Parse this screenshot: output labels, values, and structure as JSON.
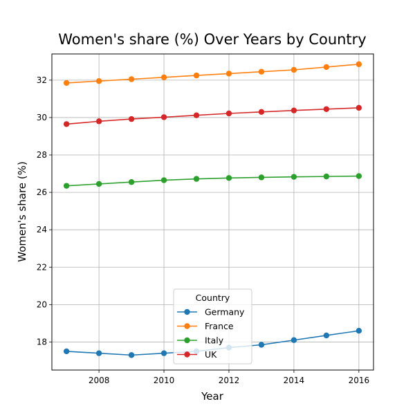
{
  "chart_data": {
    "type": "line",
    "title": "Women's share (%) Over Years by Country",
    "xlabel": "Year",
    "ylabel": "Women's share (%)",
    "x": [
      2007,
      2008,
      2009,
      2010,
      2011,
      2012,
      2013,
      2014,
      2015,
      2016
    ],
    "xlim": [
      2006.55,
      2016.45
    ],
    "ylim": [
      16.5,
      33.4
    ],
    "x_ticks": [
      "2008",
      "2010",
      "2012",
      "2014",
      "2016"
    ],
    "y_ticks": [
      "18",
      "20",
      "22",
      "24",
      "26",
      "28",
      "30",
      "32"
    ],
    "grid": true,
    "legend": {
      "title": "Country",
      "placement": "lower center"
    },
    "series": [
      {
        "name": "Germany",
        "color": "#1f77b4",
        "values": [
          17.5,
          17.4,
          17.3,
          17.4,
          17.5,
          17.7,
          17.85,
          18.1,
          18.35,
          18.6
        ]
      },
      {
        "name": "France",
        "color": "#ff7f0e",
        "values": [
          31.85,
          31.95,
          32.05,
          32.15,
          32.25,
          32.35,
          32.45,
          32.55,
          32.7,
          32.85
        ]
      },
      {
        "name": "Italy",
        "color": "#2ca02c",
        "values": [
          26.35,
          26.45,
          26.55,
          26.65,
          26.72,
          26.77,
          26.8,
          26.83,
          26.85,
          26.87
        ]
      },
      {
        "name": "UK",
        "color": "#d62728",
        "values": [
          29.65,
          29.8,
          29.92,
          30.02,
          30.12,
          30.22,
          30.3,
          30.38,
          30.45,
          30.52
        ]
      }
    ]
  }
}
